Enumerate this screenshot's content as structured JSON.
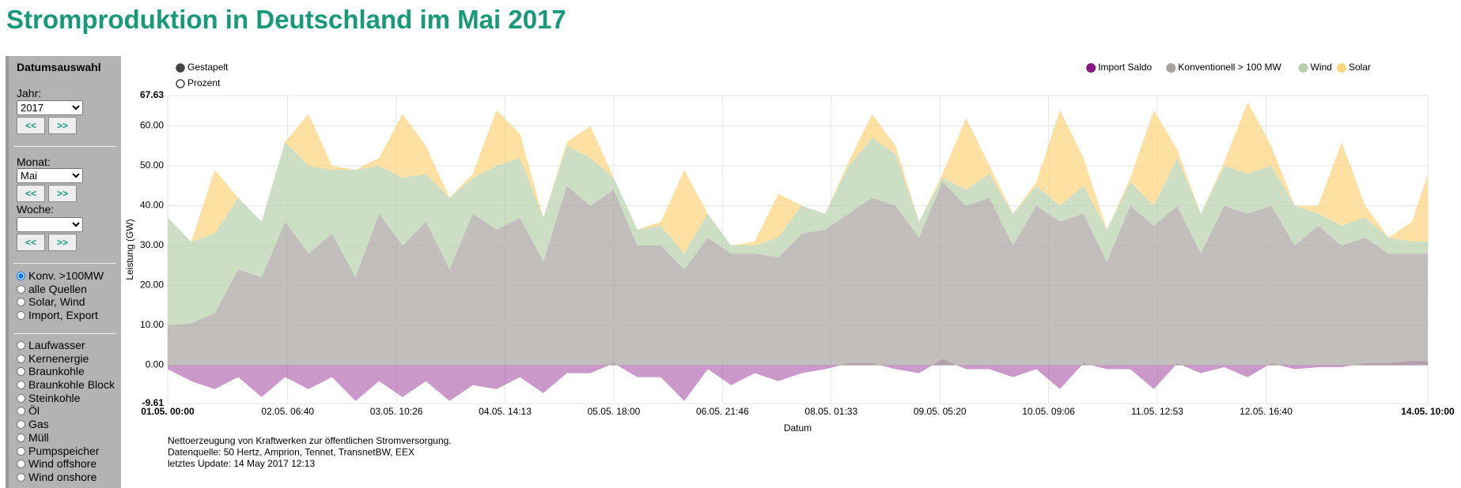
{
  "page": {
    "title": "Stromproduktion in Deutschland im Mai 2017",
    "footer": [
      "Nettoerzeugung von Kraftwerken zur öffentlichen Stromversorgung.",
      "Datenquelle: 50 Hertz, Amprion, Tennet, TransnetBW, EEX",
      "letztes Update: 14 May 2017 12:13"
    ]
  },
  "sidebar": {
    "heading": "Datumsauswahl",
    "year_label": "Jahr:",
    "year": "2017",
    "month_label": "Monat:",
    "month": "Mai",
    "week_label": "Woche:",
    "prev": "<<",
    "next": ">>",
    "mode_options": [
      "Konv. >100MW",
      "alle Quellen",
      "Solar, Wind",
      "Import, Export"
    ],
    "mode_selected": 0,
    "source_options": [
      "Laufwasser",
      "Kernenergie",
      "Braunkohle",
      "Braunkohle Block",
      "Steinkohle",
      "Öl",
      "Gas",
      "Müll",
      "Pumpspeicher",
      "Wind offshore",
      "Wind onshore"
    ]
  },
  "chart_data": {
    "type": "area",
    "xlabel": "Datum",
    "ylabel": "Leistung (GW)",
    "view_options": [
      "Gestapelt",
      "Prozent"
    ],
    "view_selected": 0,
    "legend": "top-right",
    "grid": true,
    "x": [
      "01.05. 00:00",
      "01.05. 06:00",
      "01.05. 12:00",
      "01.05. 18:00",
      "02.05. 00:00",
      "02.05. 06:00",
      "02.05. 12:00",
      "02.05. 18:00",
      "03.05. 00:00",
      "03.05. 06:00",
      "03.05. 12:00",
      "03.05. 18:00",
      "04.05. 00:00",
      "04.05. 06:00",
      "04.05. 12:00",
      "04.05. 18:00",
      "05.05. 00:00",
      "05.05. 06:00",
      "05.05. 12:00",
      "05.05. 18:00",
      "06.05. 00:00",
      "06.05. 06:00",
      "06.05. 12:00",
      "06.05. 18:00",
      "07.05. 00:00",
      "07.05. 06:00",
      "07.05. 12:00",
      "07.05. 18:00",
      "08.05. 00:00",
      "08.05. 06:00",
      "08.05. 12:00",
      "08.05. 18:00",
      "09.05. 00:00",
      "09.05. 06:00",
      "09.05. 12:00",
      "09.05. 18:00",
      "10.05. 00:00",
      "10.05. 06:00",
      "10.05. 12:00",
      "10.05. 18:00",
      "11.05. 00:00",
      "11.05. 06:00",
      "11.05. 12:00",
      "11.05. 18:00",
      "12.05. 00:00",
      "12.05. 06:00",
      "12.05. 12:00",
      "12.05. 18:00",
      "13.05. 00:00",
      "13.05. 06:00",
      "13.05. 12:00",
      "13.05. 18:00",
      "14.05. 00:00",
      "14.05. 06:00",
      "14.05. 10:00"
    ],
    "xlim": [
      "01.05. 00:00",
      "14.05. 10:00"
    ],
    "xticks": [
      "01.05. 00:00",
      "02.05. 06:40",
      "03.05. 10:26",
      "04.05. 14:13",
      "05.05. 18:00",
      "06.05. 21:46",
      "08.05. 01:33",
      "09.05. 05:20",
      "10.05. 09:06",
      "11.05. 12:53",
      "12.05. 16:40",
      "14.05. 10:00"
    ],
    "ylim": [
      -9.61,
      67.63
    ],
    "yticks": [
      -9.61,
      {
        "value": 0,
        "label": "0.00"
      },
      {
        "value": 10,
        "label": "10.00"
      },
      {
        "value": 20,
        "label": "20.00"
      },
      {
        "value": 30,
        "label": "30.00"
      },
      {
        "value": 40,
        "label": "40.00"
      },
      {
        "value": 50,
        "label": "50.00"
      },
      {
        "value": 60,
        "label": "60.00"
      },
      67.63
    ],
    "series": [
      {
        "name": "Import Saldo",
        "color": "#8b1a89",
        "stacked": false,
        "values": [
          -1,
          -4,
          -6,
          -3,
          -8,
          -3,
          -6,
          -3,
          -9,
          -4,
          -8,
          -4,
          -9,
          -5,
          -6,
          -3,
          -7,
          -2,
          -2,
          0.5,
          -3,
          -3,
          -9,
          -1,
          -5,
          -2,
          -4,
          -2,
          -1,
          0.5,
          0.5,
          -1,
          -2,
          1.5,
          -1,
          -1,
          -3,
          -1,
          -6,
          0.5,
          -1,
          -1,
          -6,
          0.5,
          -2,
          -0.5,
          -3,
          0.5,
          -1,
          -0.5,
          -0.5,
          0.5,
          0.5,
          1,
          1
        ]
      },
      {
        "name": "Konventionell > 100 MW",
        "color": "#a8a29e",
        "stacked": true,
        "values": [
          10,
          10.5,
          13,
          24,
          22,
          36,
          28,
          33,
          22,
          38,
          30,
          36,
          24,
          38,
          34,
          37,
          26,
          45,
          40,
          44,
          30,
          30,
          24,
          32,
          28,
          28,
          27,
          33,
          34,
          38,
          42,
          40,
          32,
          46,
          40,
          42,
          30,
          40,
          36,
          38,
          26,
          40,
          35,
          40,
          28,
          40,
          38,
          40,
          30,
          35,
          30,
          32,
          28,
          28,
          28
        ]
      },
      {
        "name": "Wind",
        "color": "#b7d1ad",
        "stacked": true,
        "values": [
          27,
          20.5,
          20,
          18,
          14,
          20,
          22,
          16,
          27,
          12,
          17,
          12,
          18,
          9,
          16,
          15,
          11,
          10,
          12,
          3,
          4,
          5,
          4,
          6,
          2,
          2,
          5,
          7,
          4,
          12,
          15,
          13,
          4,
          1,
          4,
          6,
          8,
          5,
          4,
          7,
          8,
          6,
          5,
          12,
          10,
          10,
          10,
          10,
          10,
          3,
          5,
          5,
          4,
          3,
          3
        ]
      },
      {
        "name": "Solar",
        "color": "#fdd37c",
        "stacked": true,
        "values": [
          0,
          0,
          16,
          0,
          0,
          0,
          13,
          1,
          0,
          2,
          16,
          7,
          0,
          1,
          14,
          6,
          0,
          1,
          8,
          0,
          0,
          1,
          21,
          0,
          0,
          1,
          11,
          0,
          0,
          1,
          6,
          2,
          0,
          1,
          18,
          2,
          0,
          1,
          24,
          7,
          0,
          1,
          24,
          2,
          0,
          1,
          18,
          5,
          0,
          2,
          21,
          3,
          0,
          5,
          17
        ]
      }
    ]
  }
}
